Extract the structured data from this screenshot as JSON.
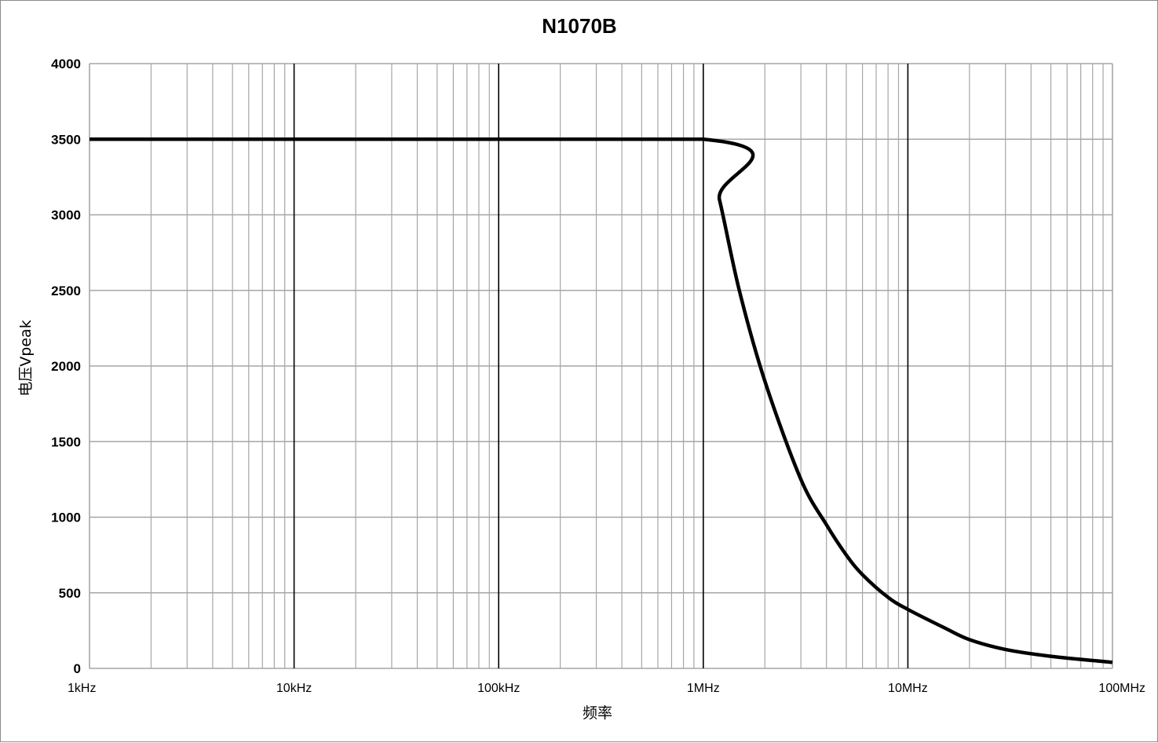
{
  "chart_data": {
    "type": "line",
    "title": "N1070B",
    "xlabel": "频率",
    "ylabel": "电压Vpeak",
    "x_scale": "log",
    "x_unit": "Hz",
    "xlim": [
      1000,
      100000000
    ],
    "ylim": [
      0,
      4000
    ],
    "x_tick_values": [
      1000,
      10000,
      100000,
      1000000,
      10000000,
      100000000
    ],
    "x_tick_labels": [
      "1kHz",
      "10kHz",
      "100kHz",
      "1MHz",
      "10MHz",
      "100MHz"
    ],
    "y_tick_values": [
      0,
      500,
      1000,
      1500,
      2000,
      2500,
      3000,
      3500,
      4000
    ],
    "y_tick_labels": [
      "0",
      "500",
      "1000",
      "1500",
      "2000",
      "2500",
      "3000",
      "3500",
      "4000"
    ],
    "grid": true,
    "legend": false,
    "line_color": "#000000",
    "series": [
      {
        "x": [
          1000,
          1000000,
          1200000,
          1500000,
          2000000,
          3000000,
          4000000,
          5000000,
          6000000,
          8000000,
          10000000,
          15000000,
          20000000,
          30000000,
          50000000,
          100000000
        ],
        "values": [
          3500,
          3500,
          3100,
          2500,
          1900,
          1250,
          950,
          750,
          620,
          470,
          390,
          270,
          190,
          125,
          80,
          40
        ]
      }
    ]
  }
}
